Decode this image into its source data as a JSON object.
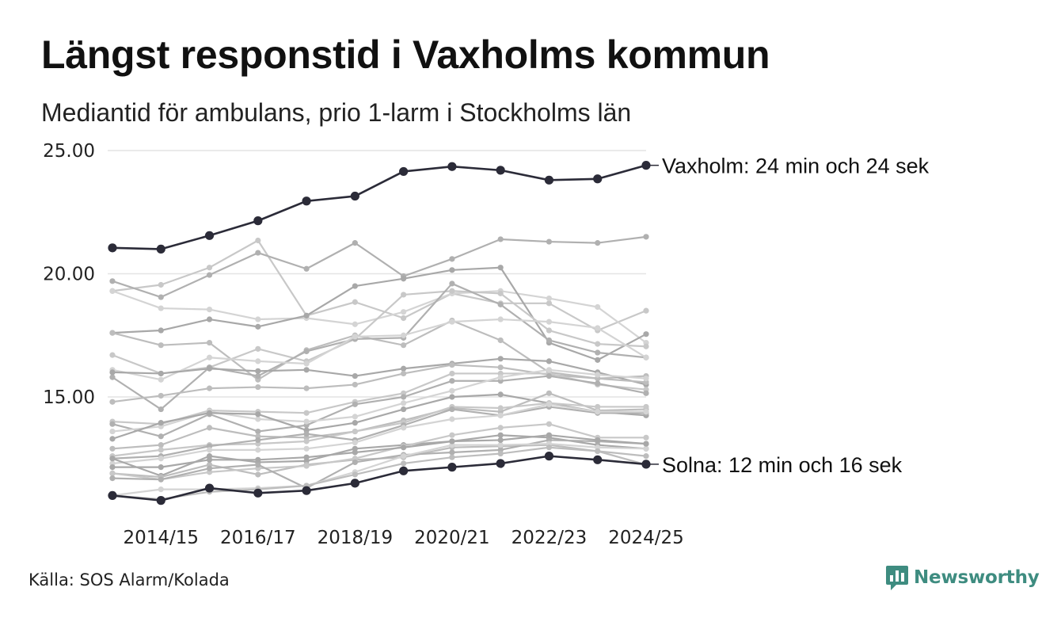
{
  "header": {
    "title": "Längst responstid i Vaxholms kommun",
    "subtitle": "Mediantid för ambulans, prio 1-larm i Stockholms län"
  },
  "footer": {
    "source": "Källa: SOS Alarm/Kolada",
    "brand": "Newsworthy",
    "brand_color": "#3e8c80"
  },
  "colors": {
    "highlight": "#2b2b38",
    "background_series": [
      "#c8c8c8",
      "#b0b0b0",
      "#d4d4d4",
      "#a8a8a8",
      "#bdbdbd"
    ],
    "gridline": "#e4e4e4"
  },
  "chart_data": {
    "type": "line",
    "title": "Längst responstid i Vaxholms kommun",
    "subtitle": "Mediantid för ambulans, prio 1-larm i Stockholms län",
    "xlabel": "",
    "ylabel": "",
    "x": [
      "2013/14",
      "2014/15",
      "2015/16",
      "2016/17",
      "2017/18",
      "2018/19",
      "2019/20",
      "2020/21",
      "2021/22",
      "2022/23",
      "2023/24",
      "2024/25"
    ],
    "x_tick_labels": [
      "2014/15",
      "2016/17",
      "2018/19",
      "2020/21",
      "2022/23",
      "2024/25"
    ],
    "y_ticks": [
      15.0,
      20.0,
      25.0
    ],
    "y_tick_labels": [
      "15.00",
      "20.00",
      "25.00"
    ],
    "ylim": [
      10.5,
      25.0
    ],
    "grid": true,
    "highlighted": [
      {
        "name": "Vaxholm",
        "label": "Vaxholm: 24 min och 24 sek",
        "values": [
          21.05,
          21.0,
          21.55,
          22.15,
          22.95,
          23.15,
          24.15,
          24.35,
          24.2,
          23.8,
          23.85,
          24.4
        ]
      },
      {
        "name": "Solna",
        "label": "Solna: 12 min och 16 sek",
        "values": [
          11.0,
          10.8,
          11.3,
          11.1,
          11.2,
          11.5,
          12.0,
          12.15,
          12.3,
          12.6,
          12.45,
          12.27
        ]
      }
    ],
    "series": [
      {
        "values": [
          19.3,
          19.55,
          20.25,
          21.35,
          18.3,
          18.85,
          18.2,
          19.2,
          18.8,
          18.8,
          17.7,
          18.5
        ]
      },
      {
        "values": [
          19.7,
          19.05,
          19.95,
          20.85,
          20.2,
          21.25,
          19.9,
          20.6,
          21.4,
          21.3,
          21.25,
          21.5
        ]
      },
      {
        "values": [
          19.3,
          18.6,
          18.55,
          18.15,
          18.2,
          17.95,
          18.45,
          19.2,
          19.3,
          19.0,
          18.65,
          17.2
        ]
      },
      {
        "values": [
          17.6,
          17.7,
          18.15,
          17.85,
          18.3,
          19.5,
          19.8,
          20.15,
          20.25,
          17.2,
          16.5,
          17.55
        ]
      },
      {
        "values": [
          17.6,
          17.1,
          17.2,
          15.7,
          16.9,
          17.5,
          17.1,
          18.1,
          17.3,
          16.0,
          15.75,
          15.85
        ]
      },
      {
        "values": [
          16.7,
          15.95,
          16.2,
          16.95,
          16.45,
          17.35,
          19.15,
          19.3,
          19.2,
          17.7,
          17.15,
          17.05
        ]
      },
      {
        "values": [
          15.8,
          14.5,
          16.2,
          15.85,
          16.85,
          17.35,
          17.4,
          19.6,
          18.75,
          17.3,
          16.8,
          16.6
        ]
      },
      {
        "values": [
          16.1,
          15.7,
          16.6,
          16.45,
          16.35,
          17.45,
          17.5,
          18.05,
          18.15,
          18.05,
          17.8,
          16.6
        ]
      },
      {
        "values": [
          16.0,
          15.95,
          16.15,
          16.05,
          16.1,
          15.85,
          16.15,
          16.35,
          16.55,
          16.45,
          16.0,
          15.5
        ]
      },
      {
        "values": [
          14.8,
          15.05,
          15.35,
          15.4,
          15.35,
          15.5,
          15.95,
          16.3,
          16.2,
          15.9,
          15.75,
          15.6
        ]
      },
      {
        "values": [
          14.0,
          13.9,
          14.45,
          14.4,
          14.35,
          14.8,
          15.15,
          15.95,
          15.95,
          15.95,
          15.5,
          15.3
        ]
      },
      {
        "values": [
          13.9,
          13.4,
          14.3,
          13.6,
          13.85,
          14.7,
          15.0,
          15.65,
          15.65,
          15.85,
          15.55,
          15.15
        ]
      },
      {
        "values": [
          13.6,
          13.8,
          14.4,
          14.1,
          14.0,
          14.2,
          14.75,
          15.25,
          15.8,
          16.1,
          15.9,
          15.75
        ]
      },
      {
        "values": [
          13.3,
          13.95,
          14.35,
          14.3,
          13.65,
          13.95,
          14.5,
          15.0,
          15.1,
          14.75,
          14.4,
          14.25
        ]
      },
      {
        "values": [
          12.9,
          13.05,
          13.75,
          13.4,
          13.35,
          13.6,
          14.05,
          14.55,
          14.4,
          15.15,
          14.45,
          14.5
        ]
      },
      {
        "values": [
          12.6,
          12.85,
          13.05,
          13.1,
          13.2,
          13.6,
          13.95,
          14.6,
          14.55,
          14.75,
          14.6,
          14.6
        ]
      },
      {
        "values": [
          12.5,
          12.6,
          13.0,
          13.25,
          13.5,
          13.25,
          13.85,
          14.5,
          14.25,
          14.6,
          14.35,
          14.35
        ]
      },
      {
        "values": [
          12.3,
          12.5,
          12.85,
          12.85,
          12.9,
          13.15,
          13.75,
          14.1,
          14.25,
          14.7,
          14.4,
          14.4
        ]
      },
      {
        "values": [
          12.5,
          11.8,
          12.6,
          12.35,
          12.4,
          12.9,
          13.05,
          13.2,
          13.45,
          13.35,
          13.05,
          12.9
        ]
      },
      {
        "values": [
          11.9,
          11.75,
          12.25,
          11.85,
          12.25,
          12.45,
          12.55,
          12.95,
          13.0,
          13.05,
          12.8,
          12.25
        ]
      },
      {
        "values": [
          11.9,
          11.65,
          11.95,
          12.1,
          12.2,
          12.5,
          13.0,
          13.45,
          13.75,
          13.9,
          13.35,
          13.35
        ]
      },
      {
        "values": [
          11.7,
          11.65,
          12.1,
          12.25,
          11.3,
          12.35,
          12.65,
          12.75,
          12.85,
          13.25,
          13.2,
          13.1
        ]
      },
      {
        "values": [
          11.0,
          11.25,
          11.25,
          11.3,
          11.4,
          11.95,
          12.6,
          13.05,
          13.05,
          13.1,
          12.95,
          12.9
        ]
      },
      {
        "values": [
          12.15,
          12.15,
          12.45,
          12.45,
          12.55,
          12.75,
          12.95,
          13.2,
          13.25,
          13.45,
          13.25,
          13.1
        ]
      },
      {
        "values": [
          11.0,
          10.85,
          11.15,
          11.25,
          11.4,
          11.85,
          12.3,
          12.55,
          12.7,
          12.95,
          12.8,
          12.6
        ]
      }
    ]
  }
}
